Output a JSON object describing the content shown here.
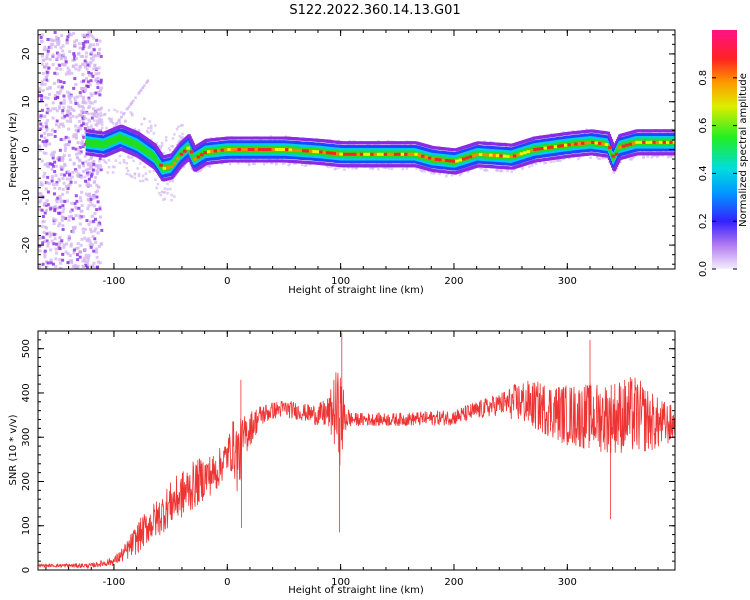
{
  "title": "S122.2022.360.14.13.G01",
  "chart_data": [
    {
      "type": "heatmap",
      "title": "S122.2022.360.14.13.G01",
      "xlabel": "Height of straight line (km)",
      "ylabel": "Frequency (Hz)",
      "xlim": [
        -167,
        395
      ],
      "ylim": [
        -25,
        25
      ],
      "xticks": [
        -100,
        0,
        100,
        200,
        300
      ],
      "yticks": [
        -20,
        -10,
        0,
        10,
        20
      ],
      "colorbar": {
        "label": "Normalized spectral amplitude",
        "range": [
          0,
          1
        ],
        "ticks": [
          "0.0",
          "0.2",
          "0.4",
          "0.6",
          "0.8"
        ],
        "colors": [
          "#d4b8f2",
          "#8a2be2",
          "#2244ff",
          "#00ccee",
          "#22dd22",
          "#ffee00",
          "#ff8800",
          "#ff2222",
          "#ff2277"
        ]
      },
      "ridge": {
        "x": [
          -125,
          -110,
          -95,
          -80,
          -65,
          -58,
          -50,
          -42,
          -35,
          -30,
          -20,
          0,
          50,
          80,
          100,
          150,
          165,
          180,
          200,
          220,
          250,
          270,
          300,
          320,
          335,
          340,
          345,
          360,
          395
        ],
        "y": [
          1.5,
          1.0,
          2.5,
          1.0,
          -1.5,
          -4.0,
          -3.5,
          -1.0,
          0.5,
          -2.0,
          -0.5,
          0.0,
          0.0,
          -0.5,
          -1.0,
          -1.0,
          -1.0,
          -2.0,
          -2.5,
          -1.0,
          -1.5,
          0.0,
          1.0,
          1.5,
          1.0,
          -2.0,
          0.5,
          1.5,
          1.5
        ]
      }
    },
    {
      "type": "line",
      "xlabel": "Height of straight line (km)",
      "ylabel": "SNR (10 * v/v)",
      "xlim": [
        -167,
        395
      ],
      "ylim": [
        0,
        540
      ],
      "xticks": [
        -100,
        0,
        100,
        200,
        300
      ],
      "yticks": [
        0,
        100,
        200,
        300,
        400,
        500
      ],
      "color": "#ee3333",
      "series": [
        {
          "name": "SNR",
          "x": [
            -167,
            -140,
            -120,
            -100,
            -90,
            -80,
            -70,
            -60,
            -50,
            -40,
            -30,
            -20,
            -10,
            0,
            5,
            10,
            15,
            20,
            30,
            40,
            50,
            60,
            70,
            80,
            90,
            95,
            100,
            105,
            110,
            120,
            150,
            200,
            240,
            260,
            300,
            330,
            360,
            380,
            395
          ],
          "values": [
            10,
            10,
            10,
            20,
            40,
            70,
            100,
            120,
            150,
            170,
            190,
            210,
            220,
            260,
            280,
            250,
            300,
            320,
            350,
            360,
            365,
            360,
            355,
            350,
            355,
            360,
            340,
            345,
            340,
            340,
            340,
            345,
            375,
            380,
            350,
            345,
            350,
            330,
            330
          ],
          "noise": [
            3,
            5,
            5,
            10,
            20,
            35,
            40,
            45,
            50,
            55,
            55,
            50,
            45,
            40,
            60,
            90,
            50,
            40,
            25,
            20,
            20,
            20,
            20,
            25,
            40,
            90,
            110,
            30,
            15,
            15,
            15,
            18,
            25,
            50,
            70,
            80,
            90,
            60,
            40
          ],
          "spikes": [
            {
              "x": 12,
              "value": 430
            },
            {
              "x": 12.5,
              "value": 95
            },
            {
              "x": 101,
              "value": 535
            },
            {
              "x": 99,
              "value": 85
            },
            {
              "x": 338,
              "value": 115
            },
            {
              "x": 320,
              "value": 520
            }
          ]
        }
      ]
    }
  ]
}
